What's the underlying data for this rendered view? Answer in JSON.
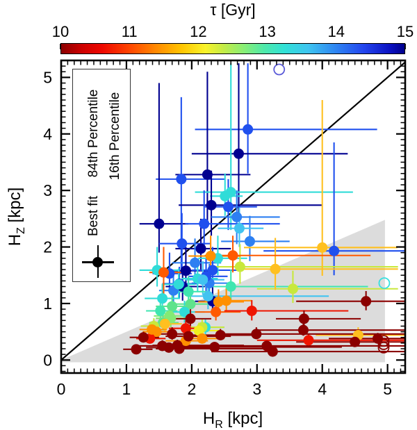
{
  "colorbar": {
    "title": "τ [Gyr]",
    "min": 10,
    "max": 15,
    "tick_labels": [
      "10",
      "11",
      "12",
      "13",
      "14",
      "15"
    ],
    "gradient_stops": [
      "#8b0000 0%",
      "#cc0000 6%",
      "#ee0800 12%",
      "#ff4600 20%",
      "#ff8c00 28%",
      "#ffc400 35%",
      "#f8f32b 42%",
      "#c6ec45 47%",
      "#8aee74 53%",
      "#4fe9a9 59%",
      "#31e1d6 65%",
      "#3ec4f0 72%",
      "#2e85f2 80%",
      "#2346ee 88%",
      "#0a10c0 96%",
      "#00008b 100%"
    ]
  },
  "legend": {
    "best_fit": "Best fit",
    "p84": "84th Percentile",
    "p16": "16th Percentile"
  },
  "axes": {
    "x": {
      "label_base": "H",
      "label_sub": "R",
      "label_unit": " [kpc]",
      "min": 0,
      "max": 5.27,
      "major_ticks": [
        0,
        1,
        2,
        3,
        4,
        5
      ],
      "tick_labels": [
        "0",
        "1",
        "2",
        "3",
        "4",
        "5"
      ],
      "minor_step": 0.1
    },
    "y": {
      "label_base": "H",
      "label_sub": "Z",
      "label_unit": " [kpc]",
      "min": -0.23,
      "max": 5.3,
      "major_ticks": [
        0,
        1,
        2,
        3,
        4,
        5
      ],
      "tick_labels": [
        "0",
        "1",
        "2",
        "3",
        "4",
        "5"
      ],
      "minor_step": 0.1
    }
  },
  "chart_data": {
    "type": "scatter",
    "xlabel": "H_R [kpc]",
    "ylabel": "H_Z [kpc]",
    "color_axis_label": "τ [Gyr]",
    "color_range": [
      10,
      15
    ],
    "xlim": [
      0,
      5.27
    ],
    "ylim": [
      -0.23,
      5.3
    ],
    "grid": false,
    "identity_line": {
      "from": [
        0,
        0
      ],
      "to": [
        5.5,
        5.5
      ],
      "color": "#000000"
    },
    "shaded_region": {
      "polygon": [
        [
          0,
          0
        ],
        [
          4.96,
          2.48
        ],
        [
          4.96,
          -0.04
        ],
        [
          0,
          -0.04
        ]
      ],
      "color": "#dcdcdc"
    },
    "point_format": [
      "x",
      "y",
      "tau_gyr",
      "color",
      "x_16th",
      "x_84th",
      "y_16th",
      "y_84th"
    ],
    "points": [
      [
        2.86,
        4.08,
        13.9,
        "#2050ee",
        2.05,
        4.84,
        3.3,
        5.25
      ],
      [
        2.72,
        3.65,
        14.8,
        "#000090",
        2.0,
        4.39,
        2.6,
        5.25
      ],
      [
        2.24,
        3.28,
        14.8,
        "#000090",
        1.75,
        2.9,
        2.35,
        5.1
      ],
      [
        1.84,
        3.2,
        13.9,
        "#2050ee",
        1.45,
        2.51,
        1.6,
        4.65
      ],
      [
        2.6,
        2.97,
        12.8,
        "#30dcd8",
        2.05,
        4.47,
        2.3,
        5.25
      ],
      [
        2.51,
        2.9,
        12.8,
        "#30dcd8",
        2.28,
        2.78,
        2.55,
        3.3
      ],
      [
        2.3,
        2.74,
        14.8,
        "#000090",
        1.8,
        4.0,
        2.2,
        3.35
      ],
      [
        2.56,
        2.71,
        13.9,
        "#2050ee",
        2.2,
        3.0,
        2.3,
        3.2
      ],
      [
        2.69,
        2.53,
        13.5,
        "#2d7ff2",
        2.3,
        3.35,
        2.05,
        3.0
      ],
      [
        1.5,
        2.41,
        14.8,
        "#000090",
        1.2,
        1.95,
        1.9,
        4.9
      ],
      [
        2.19,
        2.41,
        13.9,
        "#2050ee",
        1.9,
        3.35,
        1.95,
        3.0
      ],
      [
        2.89,
        2.1,
        13.5,
        "#2d7ff2",
        2.45,
        3.5,
        1.75,
        2.55
      ],
      [
        2.73,
        2.33,
        13.1,
        "#41c3f0",
        2.4,
        3.1,
        2.0,
        2.7
      ],
      [
        2.14,
        1.97,
        14.8,
        "#000090",
        1.75,
        2.6,
        1.6,
        2.5
      ],
      [
        1.85,
        2.06,
        13.9,
        "#2050ee",
        1.5,
        2.3,
        1.65,
        2.6
      ],
      [
        2.05,
        1.72,
        13.5,
        "#2d7ff2",
        1.7,
        2.45,
        1.4,
        2.15
      ],
      [
        1.91,
        1.58,
        14.8,
        "#000090",
        1.6,
        2.3,
        1.3,
        2.0
      ],
      [
        1.66,
        1.53,
        13.9,
        "#2050ee",
        1.4,
        2.0,
        1.25,
        1.9
      ],
      [
        1.86,
        1.3,
        14.8,
        "#000090",
        1.6,
        2.2,
        1.05,
        1.65
      ],
      [
        2.32,
        1.59,
        13.9,
        "#2050ee",
        2.0,
        2.75,
        1.3,
        2.0
      ],
      [
        4.18,
        1.93,
        13.9,
        "#2050ee",
        3.1,
        5.27,
        1.5,
        3.85
      ],
      [
        2.27,
        1.36,
        13.5,
        "#2d7ff2",
        2.0,
        2.6,
        1.1,
        1.7
      ],
      [
        1.81,
        1.35,
        13.9,
        "#2050ee",
        1.55,
        2.1,
        1.1,
        1.65
      ],
      [
        1.72,
        1.23,
        13.5,
        "#2d7ff2",
        1.5,
        2.0,
        1.0,
        1.5
      ],
      [
        2.32,
        1.04,
        14.8,
        "#000090",
        2.05,
        2.65,
        0.85,
        1.3
      ],
      [
        2.22,
        1.48,
        13.9,
        "#2050ee",
        1.95,
        2.55,
        1.2,
        1.8
      ],
      [
        1.47,
        1.59,
        12.8,
        "#30dcd8",
        1.2,
        1.8,
        1.3,
        2.0
      ],
      [
        2.4,
        1.8,
        12.8,
        "#30dcd8",
        2.1,
        2.85,
        1.5,
        2.2
      ],
      [
        2.09,
        1.44,
        12.8,
        "#30dcd8",
        1.85,
        2.4,
        1.2,
        1.75
      ],
      [
        2.17,
        1.42,
        13.1,
        "#41c3f0",
        1.9,
        2.5,
        1.15,
        1.75
      ],
      [
        2.25,
        1.13,
        13.1,
        "#41c3f0",
        1.95,
        4.1,
        0.9,
        1.4
      ],
      [
        1.55,
        1.09,
        12.8,
        "#30dcd8",
        1.28,
        1.82,
        0.88,
        1.35
      ],
      [
        1.95,
        1.21,
        12.6,
        "#3fe6b0",
        1.7,
        2.25,
        1.0,
        1.48
      ],
      [
        1.98,
        0.99,
        12.4,
        "#5fe38c",
        1.72,
        2.28,
        0.8,
        1.22
      ],
      [
        1.52,
        0.87,
        12.6,
        "#3fe6b0",
        1.3,
        1.78,
        0.7,
        1.06
      ],
      [
        1.89,
        0.85,
        12.8,
        "#30dcd8",
        1.62,
        2.2,
        0.66,
        1.05
      ],
      [
        1.7,
        0.95,
        12.4,
        "#5fe38c",
        1.45,
        2.0,
        0.76,
        1.18
      ],
      [
        1.66,
        0.78,
        12.2,
        "#84ea74",
        1.42,
        1.95,
        0.62,
        0.95
      ],
      [
        1.56,
        0.66,
        12.4,
        "#5fe38c",
        1.35,
        1.8,
        0.52,
        0.8
      ],
      [
        1.68,
        0.74,
        12.2,
        "#84ea74",
        1.45,
        1.96,
        0.58,
        0.9
      ],
      [
        2.6,
        1.3,
        12.6,
        "#3fe6b0",
        2.2,
        4.7,
        1.05,
        1.6
      ],
      [
        2.21,
        0.58,
        12.8,
        "#30dcd8",
        1.95,
        2.5,
        0.45,
        0.72
      ],
      [
        1.8,
        1.34,
        12.8,
        "#30dcd8",
        1.55,
        2.05,
        1.1,
        1.62
      ],
      [
        2.74,
        1.65,
        11.9,
        "#c8e83c",
        2.3,
        5.16,
        1.35,
        2.05
      ],
      [
        3.55,
        1.26,
        11.9,
        "#c8e83c",
        3.0,
        5.16,
        1.01,
        1.58
      ],
      [
        2.16,
        0.58,
        11.9,
        "#c8e83c",
        1.9,
        2.5,
        0.46,
        0.74
      ],
      [
        1.42,
        0.6,
        11.9,
        "#c8e83c",
        1.22,
        1.65,
        0.48,
        0.74
      ],
      [
        4.0,
        1.99,
        11.4,
        "#ffc020",
        2.8,
        5.15,
        1.49,
        4.6
      ],
      [
        3.28,
        1.61,
        11.4,
        "#ffc020",
        2.7,
        5.16,
        1.24,
        2.16
      ],
      [
        1.59,
        0.64,
        11.4,
        "#ffc020",
        1.38,
        1.85,
        0.5,
        0.8
      ],
      [
        4.55,
        0.44,
        11.4,
        "#ffc020",
        3.9,
        5.27,
        0.33,
        0.58
      ],
      [
        2.11,
        0.52,
        11.7,
        "#f0ee20",
        1.85,
        2.42,
        0.4,
        0.66
      ],
      [
        2.29,
        1.84,
        11.1,
        "#ff9000",
        1.95,
        2.75,
        1.5,
        2.2
      ],
      [
        2.63,
        1.85,
        10.8,
        "#ff5a00",
        2.2,
        4.74,
        1.55,
        2.2
      ],
      [
        1.57,
        1.55,
        10.8,
        "#ff5a00",
        1.35,
        1.85,
        1.0,
        2.0
      ],
      [
        2.41,
        1.03,
        11.1,
        "#ff9000",
        2.1,
        2.8,
        0.85,
        1.25
      ],
      [
        2.53,
        1.05,
        11.1,
        "#ff9000",
        2.2,
        2.92,
        0.86,
        1.28
      ],
      [
        2.37,
        0.85,
        10.8,
        "#ff5a00",
        2.05,
        2.75,
        0.7,
        1.05
      ],
      [
        2.92,
        0.87,
        10.5,
        "#ee1500",
        2.5,
        4.4,
        0.7,
        1.06
      ],
      [
        1.46,
        0.5,
        11.1,
        "#ff9000",
        1.25,
        1.7,
        0.4,
        0.62
      ],
      [
        1.91,
        0.56,
        10.5,
        "#ee1500",
        1.65,
        2.2,
        0.45,
        0.7
      ],
      [
        1.91,
        0.34,
        11.1,
        "#ff9000",
        1.6,
        2.25,
        0.25,
        0.45
      ],
      [
        2.16,
        0.38,
        11.1,
        "#ff9000",
        1.85,
        2.5,
        0.3,
        0.5
      ],
      [
        1.36,
        0.38,
        10.5,
        "#ee1500",
        1.15,
        1.6,
        0.3,
        0.48
      ],
      [
        3.79,
        0.35,
        10.5,
        "#ee1500",
        3.0,
        5.27,
        0.27,
        0.45
      ],
      [
        1.39,
        0.54,
        11.1,
        "#ff9000",
        1.2,
        1.62,
        0.43,
        0.66
      ],
      [
        1.98,
        0.73,
        10.1,
        "#8b0000",
        1.7,
        2.3,
        0.6,
        0.9
      ],
      [
        1.7,
        0.46,
        10.1,
        "#8b0000",
        1.45,
        2.0,
        0.36,
        0.58
      ],
      [
        1.26,
        0.4,
        10.1,
        "#8b0000",
        1.05,
        1.5,
        0.32,
        0.5
      ],
      [
        1.15,
        0.19,
        10.1,
        "#8b0000",
        0.95,
        1.4,
        0.13,
        0.27
      ],
      [
        1.55,
        0.25,
        10.1,
        "#8b0000",
        1.1,
        2.6,
        0.18,
        0.35
      ],
      [
        1.65,
        0.22,
        10.1,
        "#8b0000",
        1.3,
        2.3,
        0.16,
        0.3
      ],
      [
        1.78,
        0.26,
        10.1,
        "#8b0000",
        1.4,
        2.8,
        0.2,
        0.36
      ],
      [
        1.81,
        0.2,
        10.1,
        "#8b0000",
        1.45,
        3.1,
        0.15,
        0.28
      ],
      [
        1.95,
        0.42,
        10.1,
        "#8b0000",
        1.6,
        2.6,
        0.33,
        0.52
      ],
      [
        2.35,
        0.23,
        10.1,
        "#8b0000",
        1.8,
        4.3,
        0.17,
        0.32
      ],
      [
        2.44,
        0.44,
        10.1,
        "#8b0000",
        2.0,
        3.0,
        0.35,
        0.55
      ],
      [
        2.99,
        0.46,
        10.1,
        "#8b0000",
        2.4,
        5.27,
        0.37,
        0.58
      ],
      [
        3.15,
        0.25,
        10.1,
        "#8b0000",
        2.2,
        5.27,
        0.19,
        0.34
      ],
      [
        3.24,
        0.15,
        10.1,
        "#8b0000",
        2.3,
        5.27,
        0.1,
        0.22
      ],
      [
        3.72,
        0.73,
        10.1,
        "#8b0000",
        3.29,
        4.59,
        0.6,
        0.88
      ],
      [
        3.71,
        0.53,
        10.1,
        "#8b0000",
        3.0,
        5.27,
        0.43,
        0.65
      ],
      [
        4.67,
        1.04,
        10.1,
        "#8b0000",
        3.6,
        5.27,
        0.88,
        1.22
      ],
      [
        4.5,
        0.32,
        10.1,
        "#8b0000",
        3.6,
        5.27,
        0.25,
        0.42
      ],
      [
        4.85,
        0.38,
        10.1,
        "#8b0000",
        4.1,
        5.27,
        0.3,
        0.48
      ]
    ],
    "open_point_format": [
      "x",
      "y",
      "outline_color"
    ],
    "open_points": [
      [
        3.34,
        5.14,
        "#5a5ad8"
      ],
      [
        4.95,
        1.36,
        "#35e0e0"
      ],
      [
        4.94,
        0.34,
        "#8b0000"
      ],
      [
        4.94,
        0.28,
        "#8b0000"
      ],
      [
        4.94,
        0.22,
        "#8b0000"
      ]
    ]
  }
}
